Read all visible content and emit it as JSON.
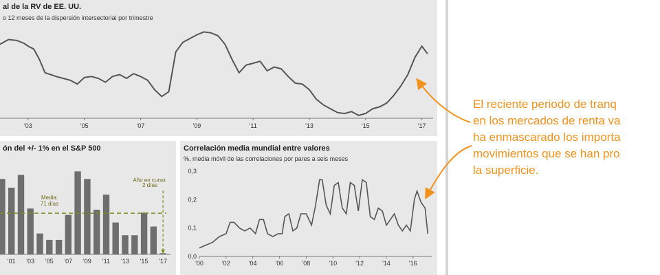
{
  "chart_data": [
    {
      "type": "line",
      "title": "al de la RV de EE. UU.",
      "subtitle": "o 12 meses de la dispersión intersectorial por trimestre",
      "x_tick_labels": [
        "'03",
        "'05",
        "'07",
        "'09",
        "'11",
        "'13",
        "'15",
        "'17"
      ],
      "x": [
        2002.0,
        2002.3,
        2002.6,
        2002.85,
        2003.0,
        2003.2,
        2003.4,
        2003.6,
        2003.8,
        2004.0,
        2004.25,
        2004.5,
        2004.75,
        2005.0,
        2005.25,
        2005.5,
        2005.75,
        2006.0,
        2006.25,
        2006.5,
        2006.75,
        2007.0,
        2007.25,
        2007.5,
        2007.75,
        2008.0,
        2008.25,
        2008.5,
        2008.75,
        2009.0,
        2009.25,
        2009.5,
        2009.75,
        2010.0,
        2010.25,
        2010.5,
        2010.75,
        2011.0,
        2011.25,
        2011.5,
        2011.75,
        2012.0,
        2012.25,
        2012.5,
        2012.75,
        2013.0,
        2013.25,
        2013.5,
        2013.75,
        2014.0,
        2014.25,
        2014.5,
        2014.75,
        2015.0,
        2015.25,
        2015.5,
        2015.75,
        2016.0,
        2016.25,
        2016.5,
        2016.75,
        2017.0,
        2017.2
      ],
      "y": [
        0.78,
        0.83,
        0.82,
        0.79,
        0.76,
        0.73,
        0.62,
        0.48,
        0.46,
        0.44,
        0.42,
        0.4,
        0.36,
        0.43,
        0.44,
        0.42,
        0.38,
        0.44,
        0.46,
        0.42,
        0.47,
        0.44,
        0.4,
        0.3,
        0.23,
        0.28,
        0.7,
        0.8,
        0.84,
        0.88,
        0.91,
        0.9,
        0.87,
        0.78,
        0.62,
        0.48,
        0.56,
        0.58,
        0.6,
        0.5,
        0.54,
        0.52,
        0.44,
        0.37,
        0.36,
        0.3,
        0.2,
        0.14,
        0.1,
        0.06,
        0.05,
        0.07,
        0.03,
        0.05,
        0.1,
        0.12,
        0.16,
        0.24,
        0.34,
        0.46,
        0.64,
        0.76,
        0.68
      ],
      "ylim": [
        0,
        1
      ]
    },
    {
      "type": "bar",
      "title": "ón del +/- 1% en el S&P 500",
      "x_tick_labels": [
        "'01",
        "'03",
        "'05",
        "'07",
        "'09",
        "'11",
        "'13",
        "'15",
        "'17"
      ],
      "categories": [
        "2000",
        "2001",
        "2002",
        "2003",
        "2004",
        "2005",
        "2006",
        "2007",
        "2008",
        "2009",
        "2010",
        "2011",
        "2012",
        "2013",
        "2014",
        "2015",
        "2016",
        "2017"
      ],
      "values": [
        130,
        115,
        137,
        79,
        36,
        25,
        25,
        68,
        143,
        130,
        77,
        103,
        55,
        33,
        33,
        72,
        48,
        2
      ],
      "ylim": [
        0,
        160
      ],
      "reference_line": {
        "value": 71,
        "label_line1": "Media:",
        "label_line2": "71 días"
      },
      "annotation": {
        "line1": "Año en curso:",
        "line2": "2 días"
      }
    },
    {
      "type": "line",
      "title": "Correlación media mundial entre valores",
      "subtitle": "%, media móvil de las correlaciones por pares a seis meses",
      "y_tick_labels": [
        "0,0",
        "0,1",
        "0,2",
        "0,3"
      ],
      "x_tick_labels": [
        "'00",
        "'02",
        "'04",
        "'06",
        "'08",
        "'10",
        "'12",
        "'14",
        "'16"
      ],
      "ylim": [
        0,
        0.3
      ],
      "x": [
        2000.0,
        2000.5,
        2001.0,
        2001.5,
        2002.0,
        2002.3,
        2002.6,
        2003.0,
        2003.4,
        2003.8,
        2004.2,
        2004.5,
        2004.8,
        2005.1,
        2005.5,
        2005.9,
        2006.2,
        2006.4,
        2006.7,
        2007.0,
        2007.3,
        2007.6,
        2008.0,
        2008.4,
        2008.7,
        2009.0,
        2009.2,
        2009.5,
        2009.8,
        2010.1,
        2010.4,
        2010.7,
        2011.0,
        2011.3,
        2011.6,
        2011.9,
        2012.2,
        2012.5,
        2012.8,
        2013.1,
        2013.4,
        2013.7,
        2014.0,
        2014.3,
        2014.6,
        2014.9,
        2015.2,
        2015.5,
        2015.8,
        2016.1,
        2016.3,
        2016.6,
        2016.9,
        2017.1
      ],
      "y": [
        0.03,
        0.04,
        0.05,
        0.07,
        0.08,
        0.12,
        0.12,
        0.1,
        0.09,
        0.1,
        0.08,
        0.13,
        0.13,
        0.08,
        0.07,
        0.08,
        0.08,
        0.14,
        0.15,
        0.09,
        0.1,
        0.15,
        0.15,
        0.11,
        0.18,
        0.27,
        0.27,
        0.18,
        0.15,
        0.25,
        0.26,
        0.17,
        0.15,
        0.26,
        0.25,
        0.16,
        0.27,
        0.26,
        0.14,
        0.13,
        0.17,
        0.16,
        0.11,
        0.13,
        0.15,
        0.11,
        0.09,
        0.11,
        0.09,
        0.2,
        0.23,
        0.19,
        0.17,
        0.08
      ]
    }
  ],
  "callout": {
    "lines": [
      "El reciente periodo de tranq",
      "en los mercados de renta va",
      "ha enmascarado los importa",
      "movimientos que se han pro",
      "la superficie."
    ]
  },
  "colors": {
    "panel": "#e8e8e8",
    "line": "#555555",
    "bar": "#6e6e6e",
    "reference": "#7d8c1e",
    "callout": "#f0921e"
  }
}
